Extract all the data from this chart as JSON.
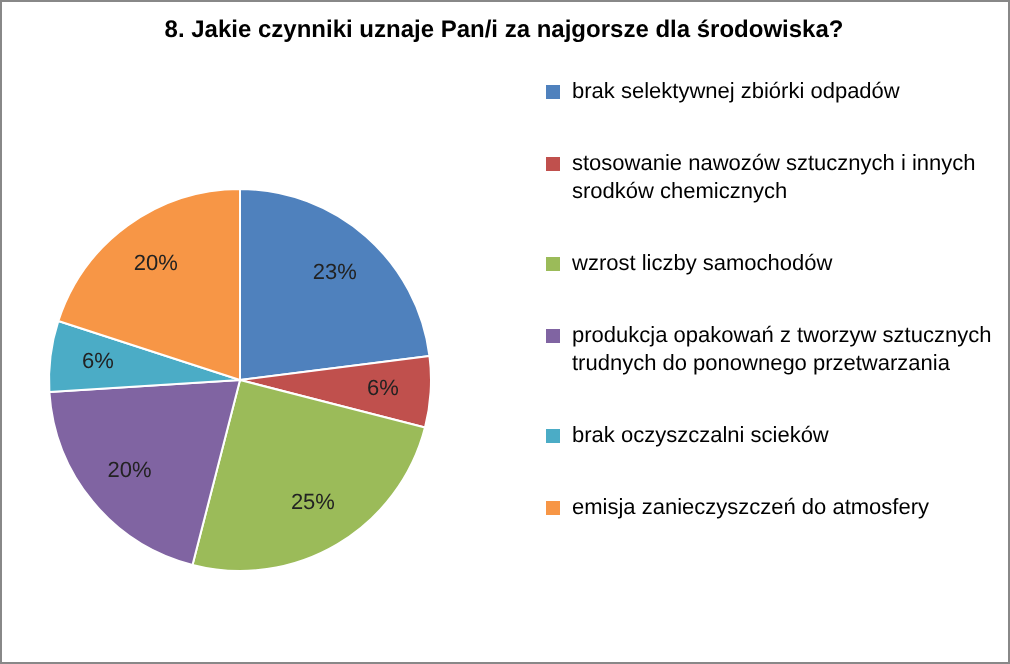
{
  "chart_data": {
    "type": "pie",
    "title": "8. Jakie czynniki uznaje Pan/i za najgorsze dla środowiska?",
    "categories": [
      "brak selektywnej zbiórki odpadów",
      "stosowanie nawozów sztucznych i innych srodków chemicznych",
      "wzrost liczby samochodów",
      "produkcja opakowań z tworzyw sztucznych trudnych do ponownego przetwarzania",
      "brak oczyszczalni scieków",
      "emisja zanieczyszczeń do atmosfery"
    ],
    "values": [
      23,
      6,
      25,
      20,
      6,
      20
    ],
    "colors": [
      "#4f81bd",
      "#c0504d",
      "#9bbb59",
      "#8064a2",
      "#4bacc6",
      "#f79646"
    ],
    "value_labels": [
      "23%",
      "6%",
      "25%",
      "20%",
      "6%",
      "20%"
    ],
    "legend": "right"
  }
}
